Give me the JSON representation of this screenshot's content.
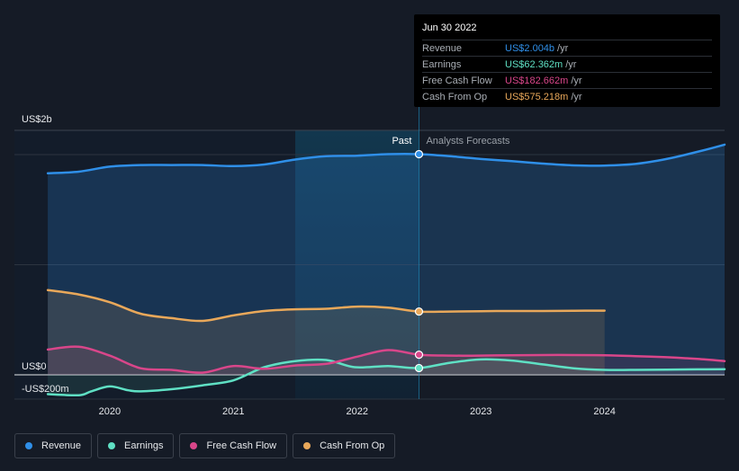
{
  "chart_data": {
    "type": "line",
    "y_axis": {
      "labels": [
        "US$2b",
        "US$0",
        "-US$200m"
      ],
      "values": [
        2000,
        0,
        -200
      ],
      "unit": "US$ millions",
      "ylim": [
        -220,
        2220
      ]
    },
    "x_axis": {
      "tick_labels": [
        "2020",
        "2021",
        "2022",
        "2023",
        "2024"
      ],
      "tick_values": [
        2020,
        2021,
        2022,
        2023,
        2024
      ],
      "xlim": [
        2019.23,
        2024.97
      ]
    },
    "past_label": "Past",
    "forecast_label": "Analysts Forecasts",
    "divider_x": 2022.5,
    "highlight_start_x": 2021.5,
    "series": [
      {
        "name": "Revenue",
        "color": "#2f8fe8",
        "x": [
          2019.5,
          2019.75,
          2020.0,
          2020.25,
          2020.5,
          2020.75,
          2021.0,
          2021.25,
          2021.5,
          2021.75,
          2022.0,
          2022.25,
          2022.5,
          2022.75,
          2023.0,
          2023.25,
          2023.5,
          2023.75,
          2024.0,
          2024.25,
          2024.5,
          2024.75,
          2024.97
        ],
        "values": [
          1830,
          1845,
          1890,
          1905,
          1905,
          1905,
          1895,
          1910,
          1955,
          1985,
          1990,
          2004,
          2004,
          1985,
          1960,
          1940,
          1918,
          1902,
          1900,
          1915,
          1960,
          2025,
          2090
        ]
      },
      {
        "name": "Earnings",
        "color": "#5fe0c4",
        "x": [
          2019.5,
          2019.75,
          2019.85,
          2020.0,
          2020.15,
          2020.25,
          2020.5,
          2020.75,
          2021.0,
          2021.25,
          2021.5,
          2021.75,
          2021.98,
          2022.25,
          2022.5,
          2022.75,
          2023.0,
          2023.25,
          2023.5,
          2023.75,
          2024.0,
          2024.25,
          2024.5,
          2024.75,
          2024.97
        ],
        "values": [
          -175,
          -185,
          -150,
          -105,
          -140,
          -150,
          -130,
          -95,
          -50,
          70,
          125,
          135,
          70,
          80,
          62,
          110,
          140,
          130,
          95,
          60,
          45,
          45,
          48,
          50,
          52
        ]
      },
      {
        "name": "Free Cash Flow",
        "color": "#d9468a",
        "x": [
          2019.5,
          2019.75,
          2020.0,
          2020.25,
          2020.5,
          2020.75,
          2021.0,
          2021.25,
          2021.5,
          2021.75,
          2022.0,
          2022.25,
          2022.5,
          2022.75,
          2023.0,
          2023.25,
          2023.5,
          2023.75,
          2024.0,
          2024.25,
          2024.5,
          2024.75,
          2024.97
        ],
        "values": [
          230,
          255,
          175,
          60,
          45,
          20,
          80,
          55,
          85,
          100,
          165,
          225,
          183,
          175,
          175,
          178,
          180,
          180,
          178,
          170,
          160,
          145,
          125
        ]
      },
      {
        "name": "Cash From Op",
        "color": "#e9a85a",
        "x": [
          2019.5,
          2019.75,
          2020.0,
          2020.25,
          2020.5,
          2020.75,
          2021.0,
          2021.25,
          2021.5,
          2021.75,
          2022.0,
          2022.25,
          2022.5,
          2022.75,
          2023.0,
          2023.25,
          2023.5,
          2023.75,
          2024.0
        ],
        "values": [
          770,
          730,
          660,
          555,
          515,
          490,
          540,
          580,
          595,
          600,
          620,
          610,
          575,
          575,
          578,
          580,
          580,
          582,
          583
        ]
      }
    ],
    "tooltip": {
      "date": "Jun 30 2022",
      "rows": [
        {
          "name": "Revenue",
          "value": "US$2.004b",
          "unit": "/yr",
          "color": "#2f8fe8"
        },
        {
          "name": "Earnings",
          "value": "US$62.362m",
          "unit": "/yr",
          "color": "#5fe0c4"
        },
        {
          "name": "Free Cash Flow",
          "value": "US$182.662m",
          "unit": "/yr",
          "color": "#d9468a"
        },
        {
          "name": "Cash From Op",
          "value": "US$575.218m",
          "unit": "/yr",
          "color": "#e9a85a"
        }
      ]
    }
  },
  "legend": [
    {
      "label": "Revenue",
      "color": "#2f8fe8"
    },
    {
      "label": "Earnings",
      "color": "#5fe0c4"
    },
    {
      "label": "Free Cash Flow",
      "color": "#d9468a"
    },
    {
      "label": "Cash From Op",
      "color": "#e9a85a"
    }
  ]
}
